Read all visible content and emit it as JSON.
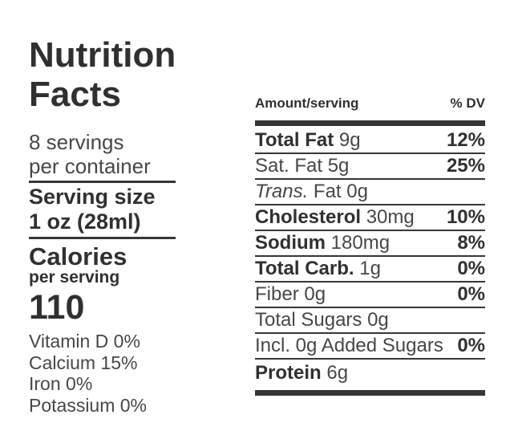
{
  "colors": {
    "background": "#ffffff",
    "text_strong": "#303030",
    "text_regular": "#474747",
    "rule": "#363636"
  },
  "label": {
    "title_line1": "Nutrition",
    "title_line2": "Facts",
    "servings_line1": "8 servings",
    "servings_line2": "per container",
    "serving_size_label": "Serving size",
    "serving_size_value": "1 oz (28ml)",
    "calories_label": "Calories",
    "calories_sublabel": "per serving",
    "calories_value": "110",
    "micronutrients": [
      "Vitamin D 0%",
      "Calcium 15%",
      "Iron 0%",
      "Potassium 0%"
    ]
  },
  "table": {
    "header_amount": "Amount/serving",
    "header_dv": "% DV",
    "rows": [
      {
        "bold": "Total Fat",
        "rest": " 9g",
        "dv": "12%"
      },
      {
        "rest": "Sat. Fat 5g",
        "dv": "25%"
      },
      {
        "italic": "Trans.",
        "rest": " Fat 0g",
        "dv": ""
      },
      {
        "bold": "Cholesterol",
        "rest": " 30mg",
        "dv": "10%"
      },
      {
        "bold": "Sodium",
        "rest": " 180mg",
        "dv": "8%"
      },
      {
        "bold": "Total Carb.",
        "rest": " 1g",
        "dv": "0%"
      },
      {
        "rest": "Fiber 0g",
        "dv": "0%"
      },
      {
        "rest": "Total Sugars 0g",
        "dv": ""
      },
      {
        "rest": "Incl. 0g Added Sugars",
        "dv": "0%"
      },
      {
        "bold": "Protein",
        "rest": " 6g",
        "dv": ""
      }
    ]
  }
}
